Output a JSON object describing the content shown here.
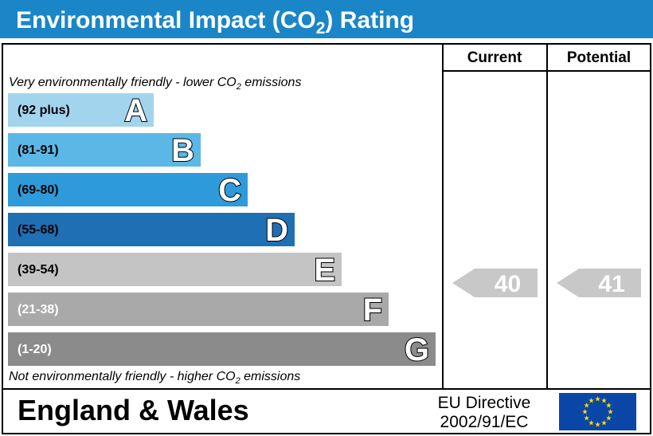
{
  "title_main": "Environmental Impact (CO",
  "title_sub": "2",
  "title_end": ") Rating",
  "columns": {
    "current": "Current",
    "potential": "Potential"
  },
  "top_note": {
    "text": "Very environmentally friendly - lower CO",
    "sub": "2",
    "end": " emissions"
  },
  "bottom_note": {
    "text": "Not environmentally friendly - higher CO",
    "sub": "2",
    "end": " emissions"
  },
  "region": "England & Wales",
  "directive": {
    "line1": "EU Directive",
    "line2": "2002/91/EC"
  },
  "chart_data": {
    "type": "bar",
    "bands": [
      {
        "letter": "A",
        "range": "(92 plus)",
        "color": "#a2d4ee",
        "text_color": "#000000"
      },
      {
        "letter": "B",
        "range": "(81-91)",
        "color": "#5bb8e6",
        "text_color": "#000000"
      },
      {
        "letter": "C",
        "range": "(69-80)",
        "color": "#2f9ad9",
        "text_color": "#000000"
      },
      {
        "letter": "D",
        "range": "(55-68)",
        "color": "#1f6fb5",
        "text_color": "#000000"
      },
      {
        "letter": "E",
        "range": "(39-54)",
        "color": "#c4c4c4",
        "text_color": "#000000"
      },
      {
        "letter": "F",
        "range": "(21-38)",
        "color": "#a9a9a9",
        "text_color": "#ffffff"
      },
      {
        "letter": "G",
        "range": "(1-20)",
        "color": "#8b8b8b",
        "text_color": "#ffffff"
      }
    ],
    "current": {
      "value": 40,
      "band": "E"
    },
    "potential": {
      "value": 41,
      "band": "E"
    },
    "colors": {
      "header": "#1a86c8",
      "arrow": "#c8c8c8",
      "eu_flag": "#0a46a8",
      "eu_star": "#ffdd00"
    }
  }
}
